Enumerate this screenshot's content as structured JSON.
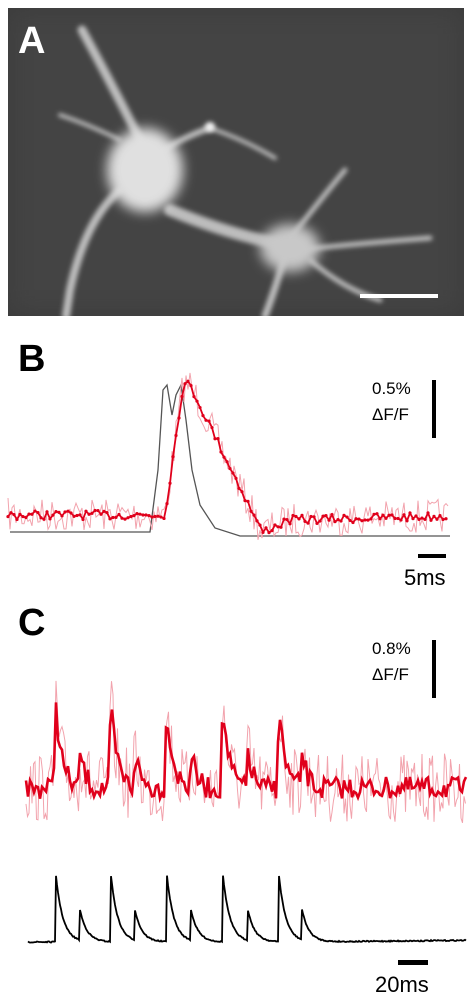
{
  "panels": {
    "a": {
      "letter": "A"
    },
    "b": {
      "letter": "B",
      "scale_value": "0.5%",
      "scale_unit": "ΔF/F",
      "time_scale": "5ms"
    },
    "c": {
      "letter": "C",
      "scale_value": "0.8%",
      "scale_unit": "ΔF/F",
      "time_scale": "20ms"
    }
  },
  "colors": {
    "fluorescence_trace": "#e0001b",
    "fluorescence_raw": "#f2a3ad",
    "electrical_trace_b": "#555555",
    "electrical_trace_c": "#000000",
    "image_background": "#3a3a3a"
  }
}
